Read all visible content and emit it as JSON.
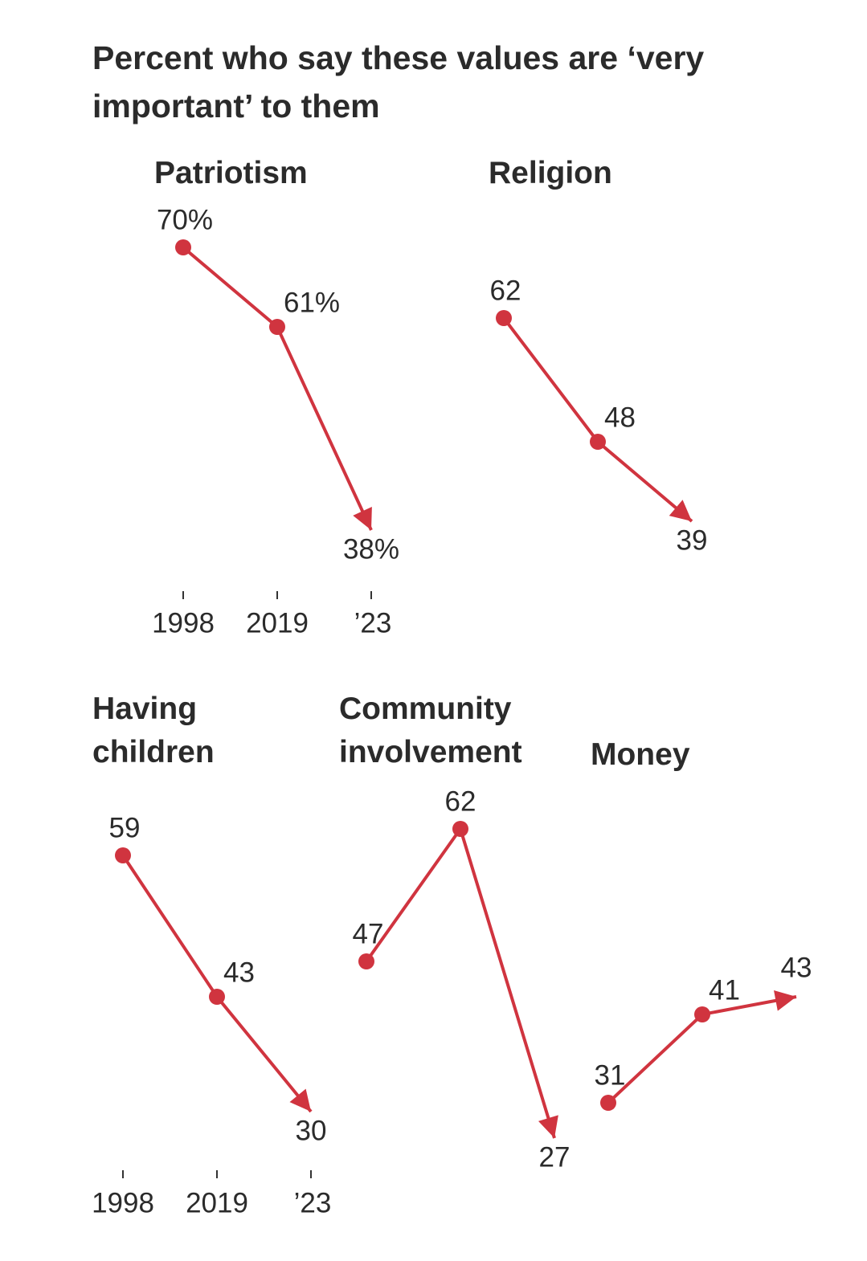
{
  "title": "Percent who say these values are ‘very important’ to them",
  "chart_data": [
    {
      "type": "line",
      "title": "Patriotism",
      "categories": [
        "1998",
        "2019",
        "’23"
      ],
      "values": [
        70,
        61,
        38
      ],
      "value_labels": [
        "70%",
        "61%",
        "38%"
      ],
      "color": "#d0343f",
      "ylim": [
        35,
        72
      ]
    },
    {
      "type": "line",
      "title": "Religion",
      "values": [
        62,
        48,
        39
      ],
      "color": "#d0343f",
      "ylim": [
        35,
        72
      ]
    },
    {
      "type": "line",
      "title": "Having children",
      "categories": [
        "1998",
        "2019",
        "’23"
      ],
      "values": [
        59,
        43,
        30
      ],
      "color": "#d0343f",
      "ylim": [
        25,
        65
      ]
    },
    {
      "type": "line",
      "title": "Community involvement",
      "values": [
        47,
        62,
        27
      ],
      "color": "#d0343f",
      "ylim": [
        25,
        65
      ]
    },
    {
      "type": "line",
      "title": "Money",
      "values": [
        31,
        41,
        43
      ],
      "color": "#d0343f",
      "ylim": [
        25,
        65
      ]
    }
  ]
}
